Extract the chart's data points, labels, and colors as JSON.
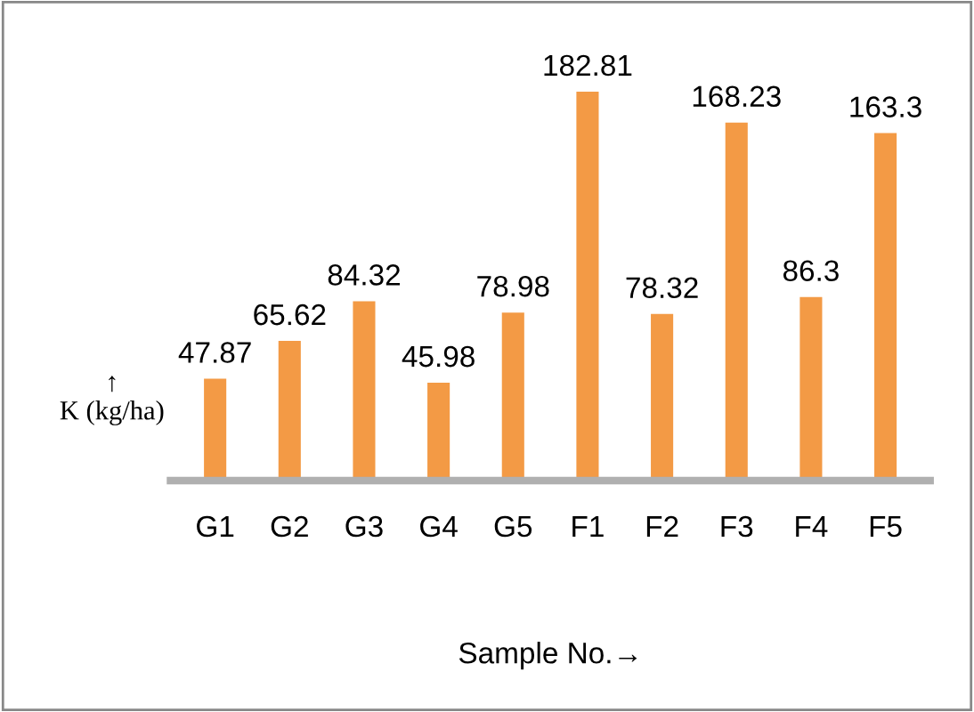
{
  "chart_data": {
    "type": "bar",
    "xlabel": "Sample No.→",
    "ylabel": "↑\nK (kg/ha)",
    "categories": [
      "G1",
      "G2",
      "G3",
      "G4",
      "G5",
      "F1",
      "F2",
      "F3",
      "F4",
      "F5"
    ],
    "values": [
      47.87,
      65.62,
      84.32,
      45.98,
      78.98,
      182.81,
      78.32,
      168.23,
      86.3,
      163.3
    ],
    "color": "#f39a45",
    "data_labels": true,
    "grid": false,
    "legend": false
  }
}
